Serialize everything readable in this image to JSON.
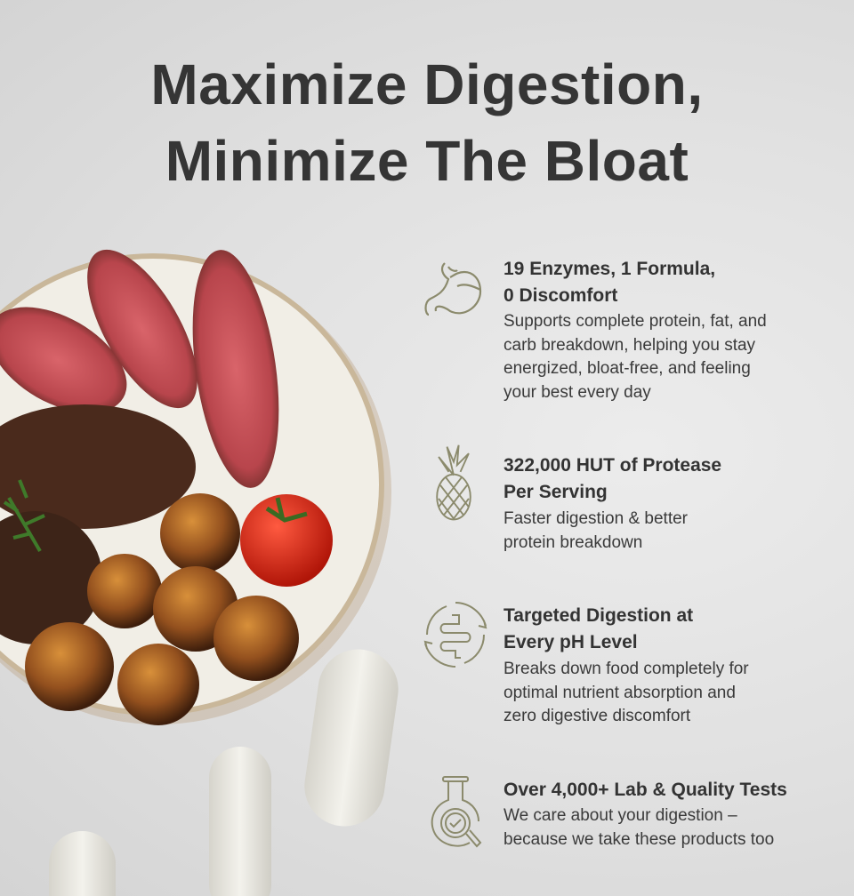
{
  "headline": [
    "Maximize Digestion,",
    "Minimize The Bloat"
  ],
  "colors": {
    "text": "#333333",
    "icon": "#8b8a6c",
    "background": "#e0e0e0"
  },
  "features": [
    {
      "icon": "stomach-icon",
      "title": [
        "19 Enzymes, 1 Formula,",
        "0 Discomfort"
      ],
      "body": [
        "Supports complete protein, fat, and",
        "carb breakdown, helping you stay",
        "energized, bloat-free, and feeling",
        "your best every day"
      ]
    },
    {
      "icon": "pineapple-icon",
      "title": [
        "322,000 HUT of Protease",
        "Per Serving"
      ],
      "body": [
        "Faster digestion & better",
        "protein breakdown"
      ]
    },
    {
      "icon": "intestine-cycle-icon",
      "title": [
        "Targeted Digestion at",
        "Every pH Level"
      ],
      "body": [
        "Breaks down food completely for",
        "optimal nutrient absorption and",
        "zero digestive discomfort"
      ]
    },
    {
      "icon": "lab-flask-magnifier-icon",
      "title": [
        "Over 4,000+ Lab & Quality Tests"
      ],
      "body": [
        "We care about your digestion –",
        "because we take these products too"
      ]
    }
  ]
}
